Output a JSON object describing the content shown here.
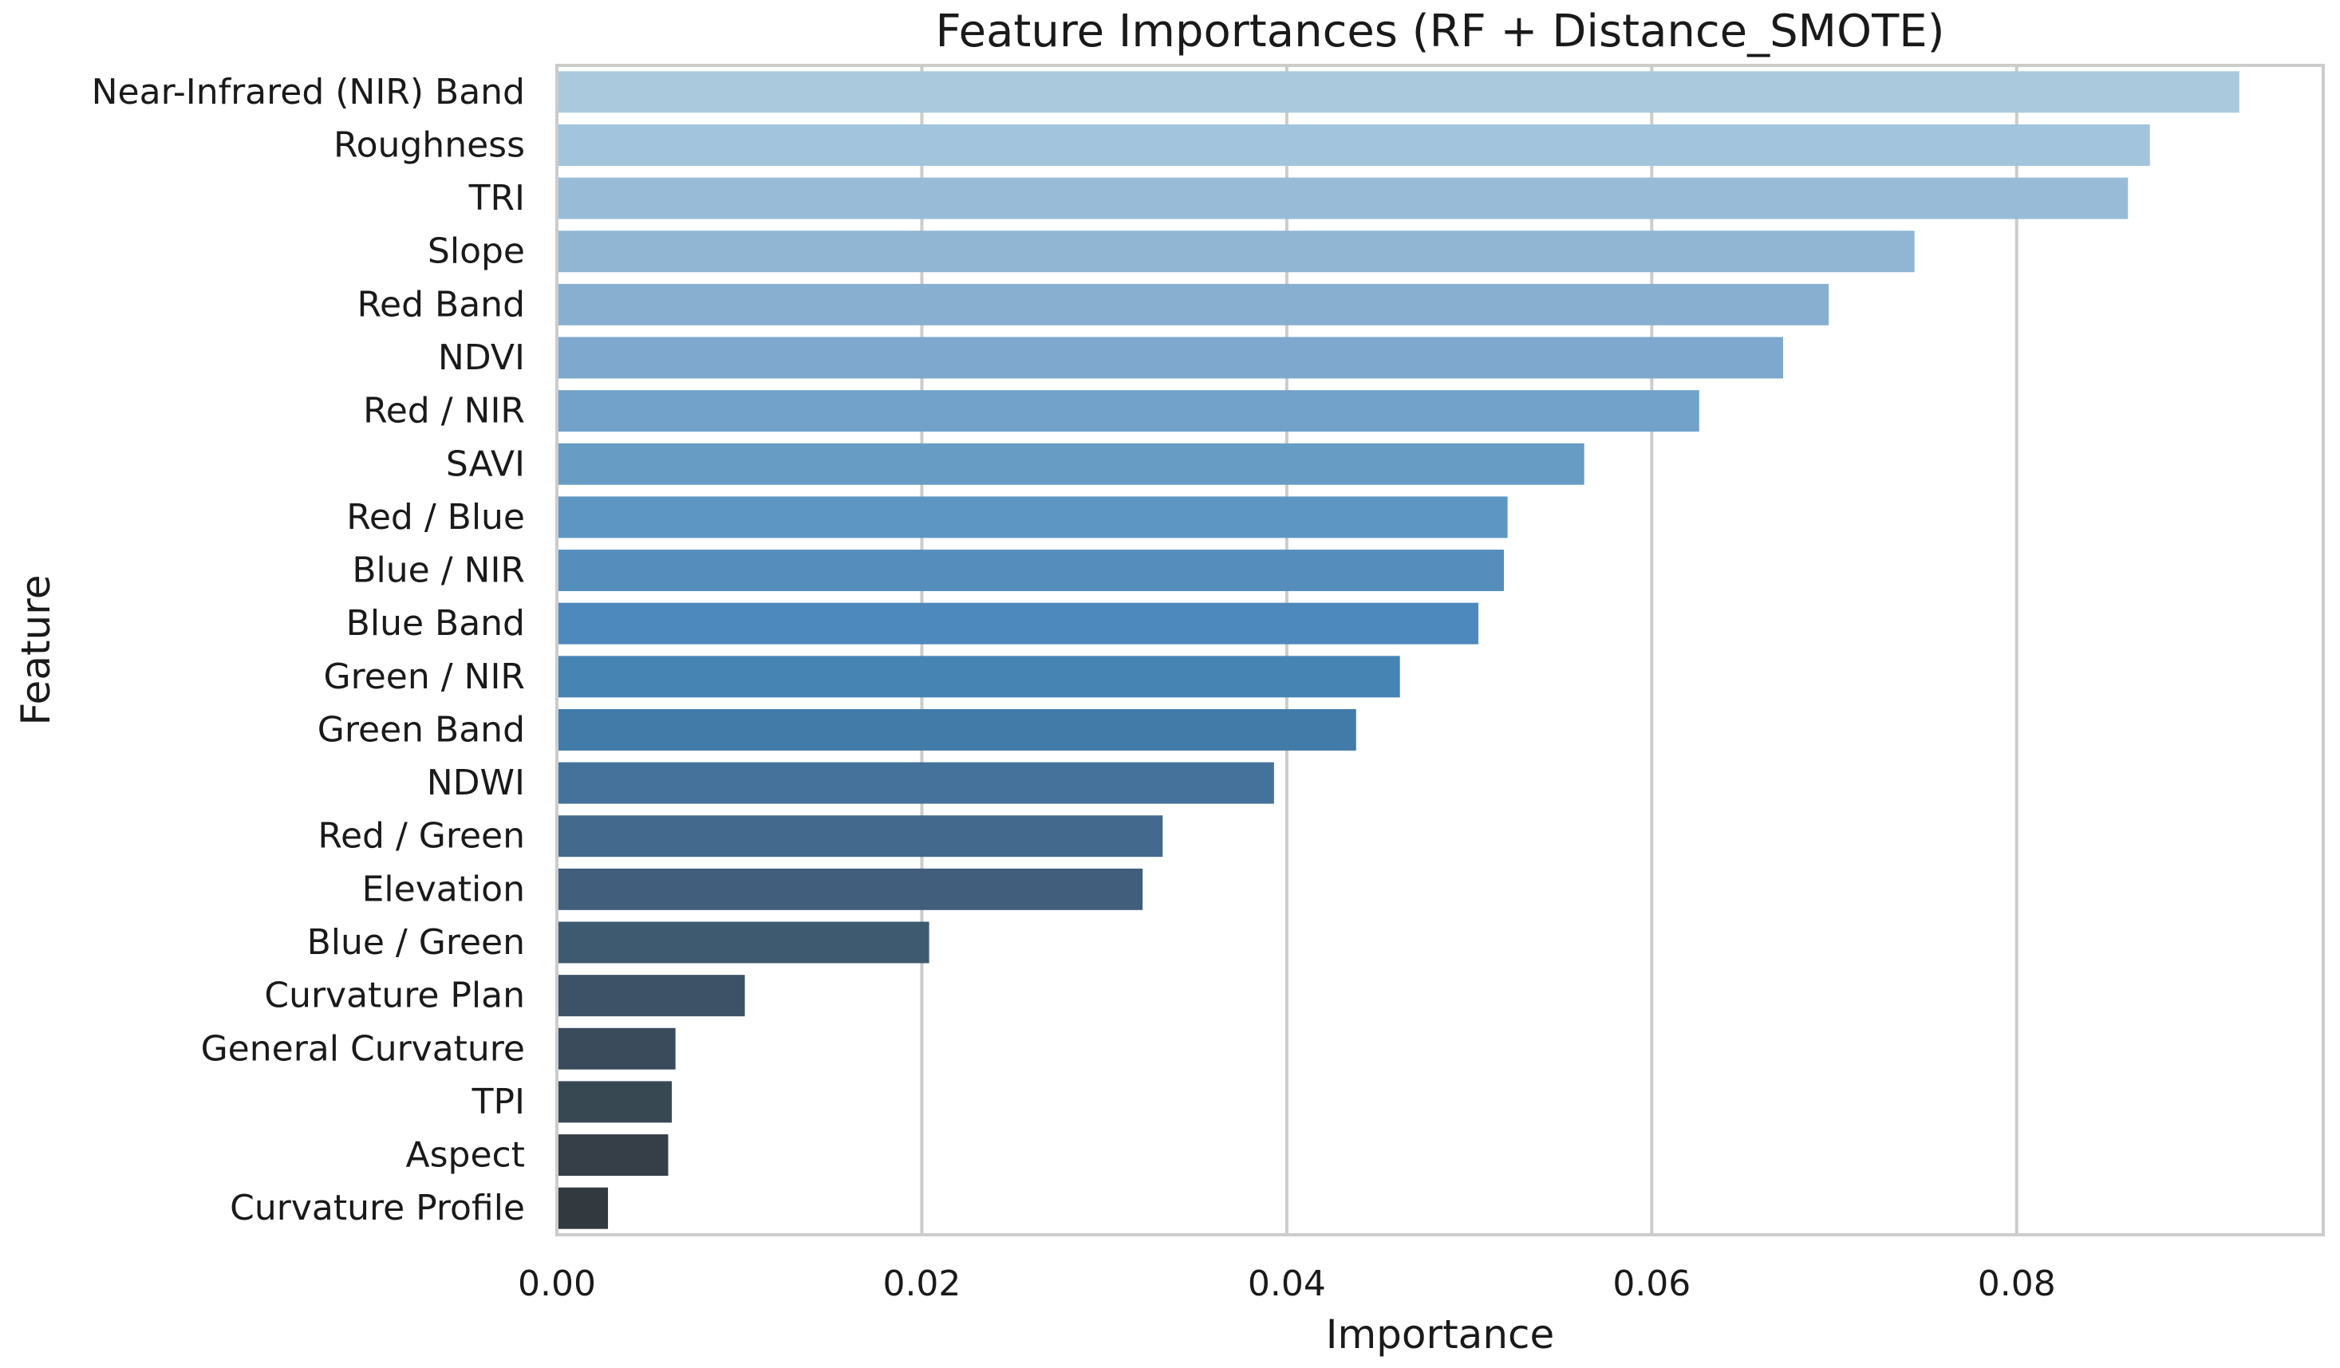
{
  "chart_data": {
    "type": "bar",
    "orientation": "horizontal",
    "title": "Feature Importances (RF + Distance_SMOTE)",
    "xlabel": "Importance",
    "ylabel": "Feature",
    "xlim": [
      0,
      0.0968
    ],
    "xticks": [
      "0.00",
      "0.02",
      "0.04",
      "0.06",
      "0.08"
    ],
    "xtick_values": [
      0,
      0.02,
      0.04,
      0.06,
      0.08
    ],
    "grid": "vertical",
    "categories": [
      "Near-Infrared (NIR) Band",
      "Roughness",
      "TRI",
      "Slope",
      "Red Band",
      "NDVI",
      "Red / NIR",
      "SAVI",
      "Red / Blue",
      "Blue / NIR",
      "Blue Band",
      "Green / NIR",
      "Green Band",
      "NDWI",
      "Red / Green",
      "Elevation",
      "Blue / Green",
      "Curvature Plan",
      "General Curvature",
      "TPI",
      "Aspect",
      "Curvature Profile"
    ],
    "values": [
      0.0922,
      0.0873,
      0.0861,
      0.0744,
      0.0697,
      0.0672,
      0.0626,
      0.0563,
      0.0521,
      0.0519,
      0.0505,
      0.0462,
      0.0438,
      0.0393,
      0.0332,
      0.0321,
      0.0204,
      0.0103,
      0.0065,
      0.0063,
      0.0061,
      0.0028
    ],
    "colors": [
      "#aac9dd",
      "#a2c4dc",
      "#98bcd8",
      "#90b6d4",
      "#88afd0",
      "#7ea8cd",
      "#72a1ca",
      "#679cc5",
      "#5e96c3",
      "#558ebd",
      "#4d89bc",
      "#4684b4",
      "#437ba8",
      "#44729a",
      "#436a8c",
      "#415f7d",
      "#3e5a70",
      "#3d5266",
      "#3a4b5b",
      "#384852",
      "#363f47",
      "#333a3f"
    ]
  }
}
